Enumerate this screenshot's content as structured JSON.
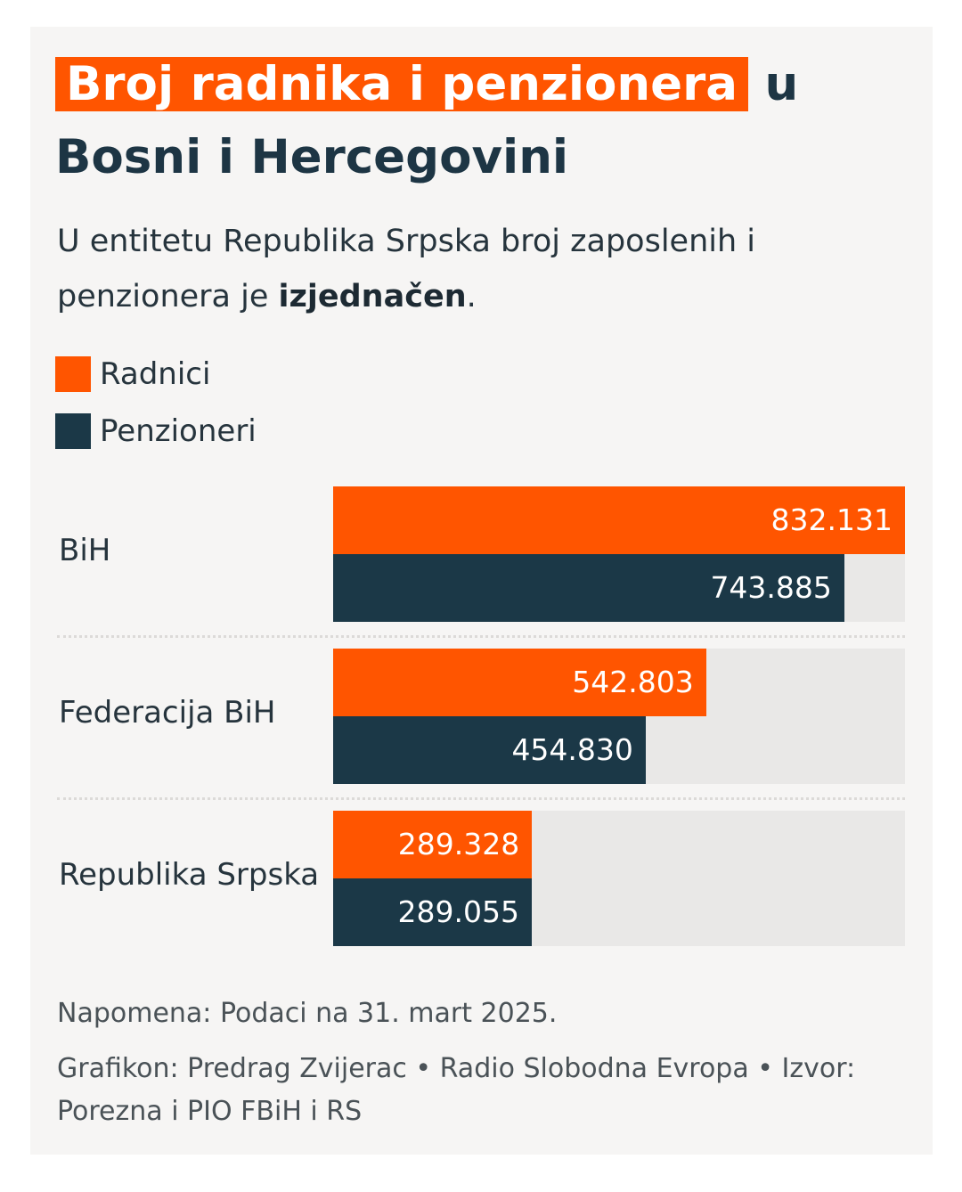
{
  "header": {
    "title_highlight": "Broj radnika i penzionera",
    "title_rest": " u Bosni i Hercegovini",
    "subtitle_prefix": "U entitetu Republika Srpska broj zaposlenih i penzionera je ",
    "subtitle_bold": "izjednačen",
    "subtitle_suffix": "."
  },
  "legend": {
    "items": [
      {
        "label": "Radnici",
        "color": "#ff5500"
      },
      {
        "label": "Penzioneri",
        "color": "#1b3847"
      }
    ]
  },
  "chart_data": {
    "type": "bar",
    "orientation": "horizontal",
    "categories": [
      "BiH",
      "Federacija BiH",
      "Republika Srpska"
    ],
    "series": [
      {
        "name": "Radnici",
        "color": "#ff5500",
        "values": [
          832131,
          542803,
          289328
        ],
        "labels": [
          "832.131",
          "542.803",
          "289.328"
        ]
      },
      {
        "name": "Penzioneri",
        "color": "#1b3847",
        "values": [
          743885,
          454830,
          289055
        ],
        "labels": [
          "743.885",
          "454.830",
          "289.055"
        ]
      }
    ],
    "xlim": [
      0,
      832131
    ],
    "legend_position": "top-left",
    "grid": false
  },
  "footer": {
    "note": "Napomena: Podaci na 31. mart 2025.",
    "credit": "Grafikon: Predrag Zvijerac • Radio Slobodna Evropa • Izvor: Porezna i PIO FBiH i RS"
  }
}
